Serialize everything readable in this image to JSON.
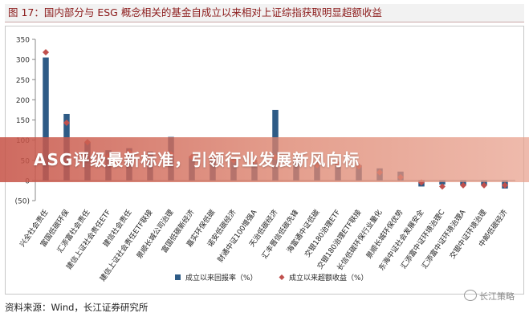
{
  "header": {
    "title": "图 17：国内部分与 ESG 概念相关的基金自成立以来相对上证综指获取明显超额收益"
  },
  "banner": {
    "text": "ASG评级最新标准，引领行业发展新风向标"
  },
  "footer": {
    "source": "资料来源：Wind，长江证券研究所",
    "watermark": "长江策略"
  },
  "colors": {
    "bar": "#2e5b86",
    "marker": "#c0504d",
    "banner": "#c9564a",
    "title": "#8b1a1a"
  },
  "chart_data": {
    "type": "bar",
    "ylim": [
      -50,
      350
    ],
    "yticks": [
      350,
      300,
      250,
      200,
      150,
      100,
      50,
      0,
      -50
    ],
    "ytick_labels": [
      "350",
      "300",
      "250",
      "200",
      "150",
      "100",
      "50",
      "0",
      "(50)"
    ],
    "grid": false,
    "legend_position": "bottom",
    "categories": [
      "兴全社会责任",
      "富国低碳环保",
      "汇添富社会责任",
      "建信上证社会责任ETF",
      "建信社会责任",
      "建信上证社会责任ETF联接",
      "景顺长城公司治理",
      "富国低碳新经济",
      "嘉实环保低碳",
      "诺安低碳经济",
      "财通中证100增强A",
      "天治低碳经济",
      "汇丰晋信低碳先锋",
      "海富通中证低碳",
      "交银180治理ETF",
      "交银180治理ETF联接",
      "长信低碳环保行业量化",
      "景顺长城环保优势",
      "东海中证社会发展安全",
      "汇添富中证环境治理C",
      "汇添富中证环境治理A",
      "交银中证环境治理",
      "中邮低碳经济"
    ],
    "series": [
      {
        "name": "成立以来回报率（%）",
        "marker": "bar",
        "values": [
          305,
          165,
          95,
          75,
          80,
          72,
          108,
          60,
          58,
          50,
          45,
          175,
          55,
          40,
          42,
          38,
          30,
          22,
          -15,
          -10,
          -12,
          -12,
          -20
        ]
      },
      {
        "name": "成立以来超额收益（%）",
        "marker": "diamond",
        "values": [
          318,
          143,
          95,
          60,
          70,
          55,
          65,
          58,
          55,
          50,
          48,
          58,
          50,
          38,
          40,
          35,
          20,
          8,
          -5,
          -15,
          -12,
          -12,
          -12
        ]
      }
    ]
  }
}
